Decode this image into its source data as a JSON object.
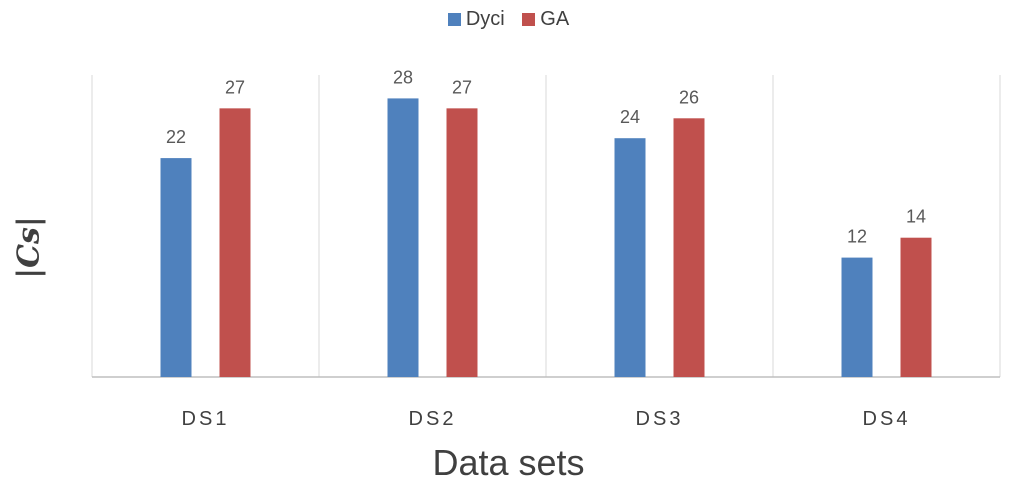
{
  "chart_data": {
    "type": "bar",
    "categories": [
      "DS1",
      "DS2",
      "DS3",
      "DS4"
    ],
    "series": [
      {
        "name": "Dyci",
        "values": [
          22,
          28,
          24,
          12
        ],
        "color": "#4f81bd"
      },
      {
        "name": "GA",
        "values": [
          27,
          27,
          26,
          14
        ],
        "color": "#c0504d"
      }
    ],
    "xlabel": "Data sets",
    "ylabel": "|Cs|",
    "ylim": [
      0,
      30
    ],
    "grid": "vertical separators between categories",
    "legend": "top-center",
    "data_labels": true
  }
}
